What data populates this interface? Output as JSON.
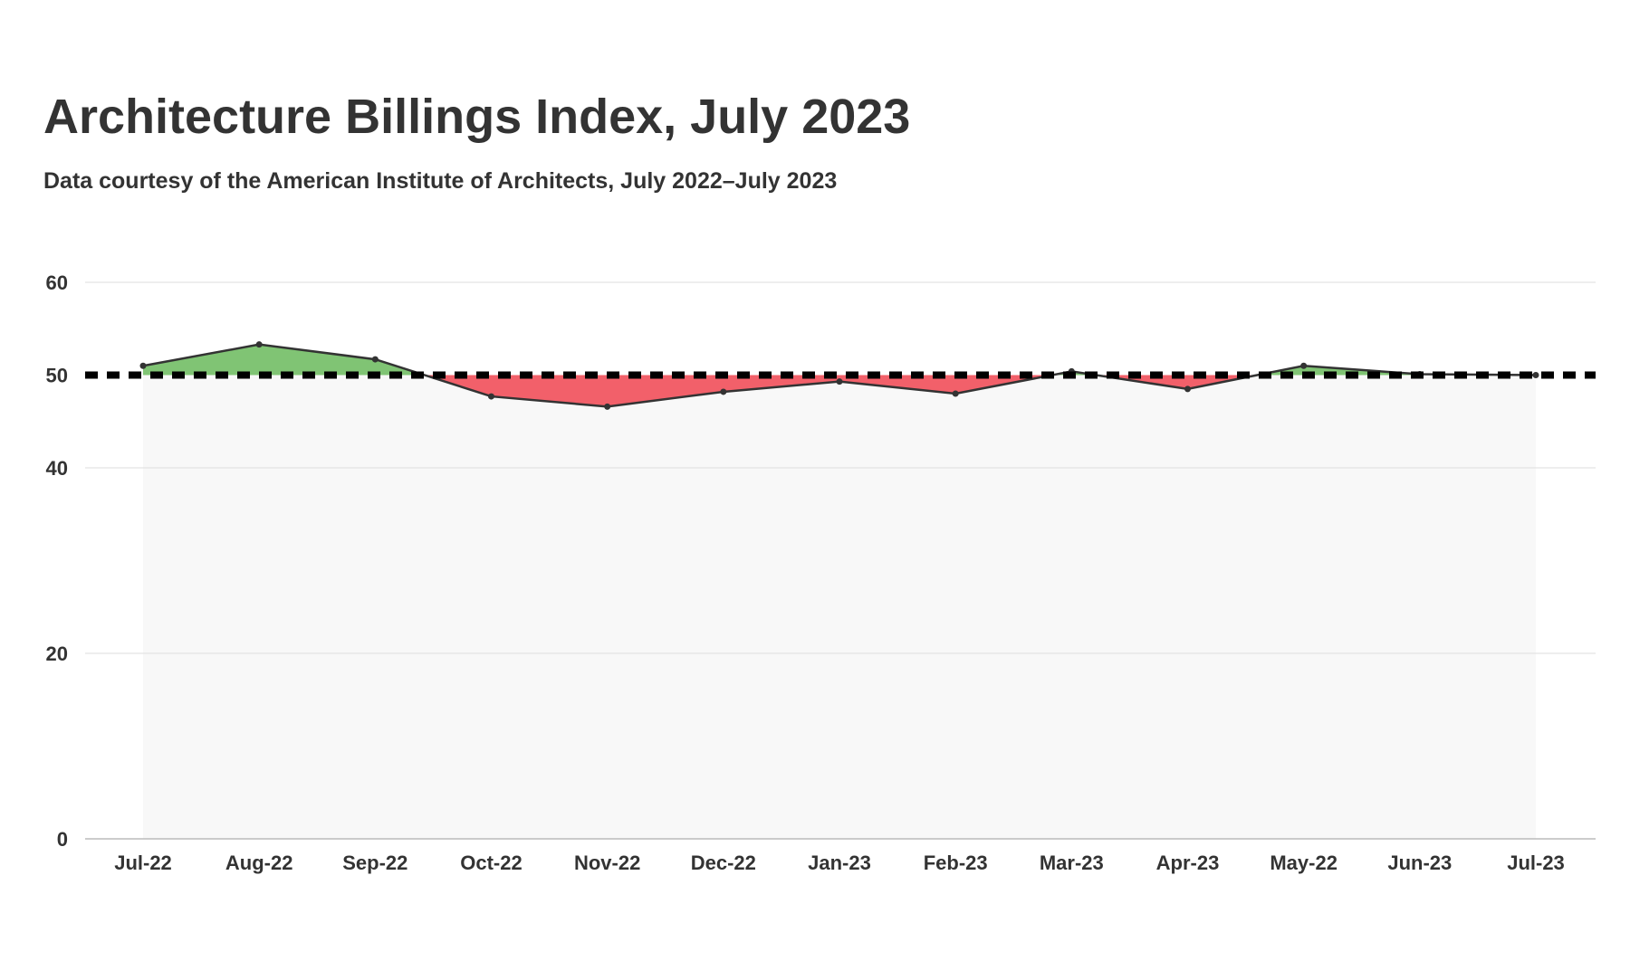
{
  "title": "Architecture Billings Index, July 2023",
  "subtitle": "Data courtesy of the American Institute of Architects, July 2022–July 2023",
  "chart_data": {
    "type": "area",
    "title": "Architecture Billings Index, July 2023",
    "subtitle": "Data courtesy of the American Institute of Architects, July 2022–July 2023",
    "xlabel": "",
    "ylabel": "",
    "categories": [
      "Jul-22",
      "Aug-22",
      "Sep-22",
      "Oct-22",
      "Nov-22",
      "Dec-22",
      "Jan-23",
      "Feb-23",
      "Mar-23",
      "Apr-23",
      "May-22",
      "Jun-23",
      "Jul-23"
    ],
    "values": [
      51.0,
      53.3,
      51.7,
      47.7,
      46.6,
      48.2,
      49.3,
      48.0,
      50.4,
      48.5,
      51.0,
      50.1,
      50.0
    ],
    "y_ticks": [
      0,
      20,
      40,
      50,
      60
    ],
    "ylim": [
      0,
      60
    ],
    "threshold": 50,
    "grid": true,
    "legend": "none",
    "colors": {
      "above": "#80c474",
      "below": "#f2606a",
      "line": "#333333",
      "threshold": "#000000",
      "plot_bg": "#f8f8f8",
      "grid": "#e3e3e3"
    }
  }
}
